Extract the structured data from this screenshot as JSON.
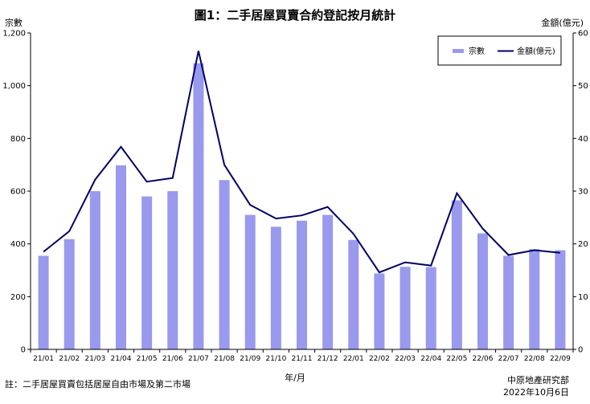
{
  "chart_data": {
    "type": "bar+line",
    "title": "圖1：二手居屋買賣合約登記按月統計",
    "ylabel_left": "宗數",
    "ylabel_right": "金額(億元)",
    "xlabel": "年/月",
    "categories": [
      "21/01",
      "21/02",
      "21/03",
      "21/04",
      "21/05",
      "21/06",
      "21/07",
      "21/08",
      "21/09",
      "21/10",
      "21/11",
      "21/12",
      "22/01",
      "22/02",
      "22/03",
      "22/04",
      "22/05",
      "22/06",
      "22/07",
      "22/08",
      "22/09"
    ],
    "series": [
      {
        "name": "宗數",
        "type": "bar",
        "axis": "left",
        "color": "#9999ee",
        "values": [
          355,
          418,
          600,
          698,
          580,
          600,
          1085,
          642,
          510,
          465,
          488,
          510,
          415,
          288,
          313,
          312,
          565,
          440,
          355,
          380,
          376
        ]
      },
      {
        "name": "金額(億元)",
        "type": "line",
        "axis": "right",
        "color": "#000066",
        "values": [
          18.5,
          22.4,
          32.2,
          38.4,
          31.8,
          32.5,
          56.6,
          35.0,
          27.4,
          24.8,
          25.4,
          27.0,
          21.9,
          14.6,
          16.5,
          15.9,
          29.6,
          22.9,
          17.9,
          18.8,
          18.3
        ]
      }
    ],
    "ylim_left": [
      0,
      1200
    ],
    "yticks_left": [
      "0",
      "200",
      "400",
      "600",
      "800",
      "1,000",
      "1,200"
    ],
    "ylim_right": [
      0,
      60
    ],
    "yticks_right": [
      "0",
      "10",
      "20",
      "30",
      "40",
      "50",
      "60"
    ],
    "grid": false,
    "legend_position": "top-right"
  },
  "footer": {
    "note": "註：二手居屋買賣包括居屋自由市場及第二市場",
    "source": "中原地產研究部",
    "date": "2022年10月6日"
  }
}
